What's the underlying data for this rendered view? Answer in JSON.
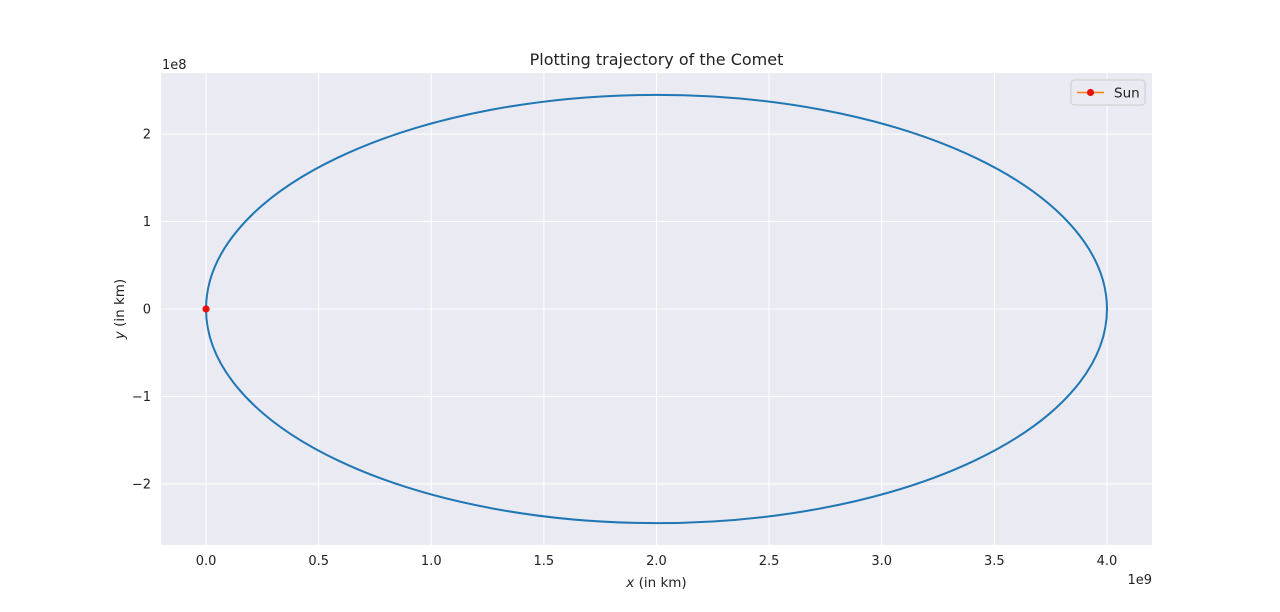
{
  "chart_data": {
    "type": "line",
    "title": "Plotting trajectory of the Comet",
    "xlabel": "x (in km)",
    "ylabel": "y (in km)",
    "x_offset_label": "1e9",
    "y_offset_label": "1e8",
    "xlim": [
      -0.2,
      4.2
    ],
    "ylim": [
      -2.7,
      2.7
    ],
    "x_ticks": [
      0.0,
      0.5,
      1.0,
      1.5,
      2.0,
      2.5,
      3.0,
      3.5,
      4.0
    ],
    "x_tick_labels": [
      "0.0",
      "0.5",
      "1.0",
      "1.5",
      "2.0",
      "2.5",
      "3.0",
      "3.5",
      "4.0"
    ],
    "y_ticks": [
      -2,
      -1,
      0,
      1,
      2
    ],
    "y_tick_labels": [
      "−2",
      "−1",
      "0",
      "1",
      "2"
    ],
    "grid": true,
    "legend_position": "top-right",
    "series": [
      {
        "kind": "orbit-ellipse",
        "color": "#1f77b4",
        "center": [
          2.0,
          0.0
        ],
        "semi_axis_x": 2.0,
        "semi_axis_y": 2.45
      },
      {
        "name": "Sun",
        "kind": "point",
        "x": [
          0.0
        ],
        "y": [
          0.0
        ],
        "line_color": "#ff7f0e",
        "marker_color": "#e8110f"
      }
    ],
    "colors": {
      "plot_background": "#eaeaf2",
      "grid": "#ffffff"
    }
  }
}
